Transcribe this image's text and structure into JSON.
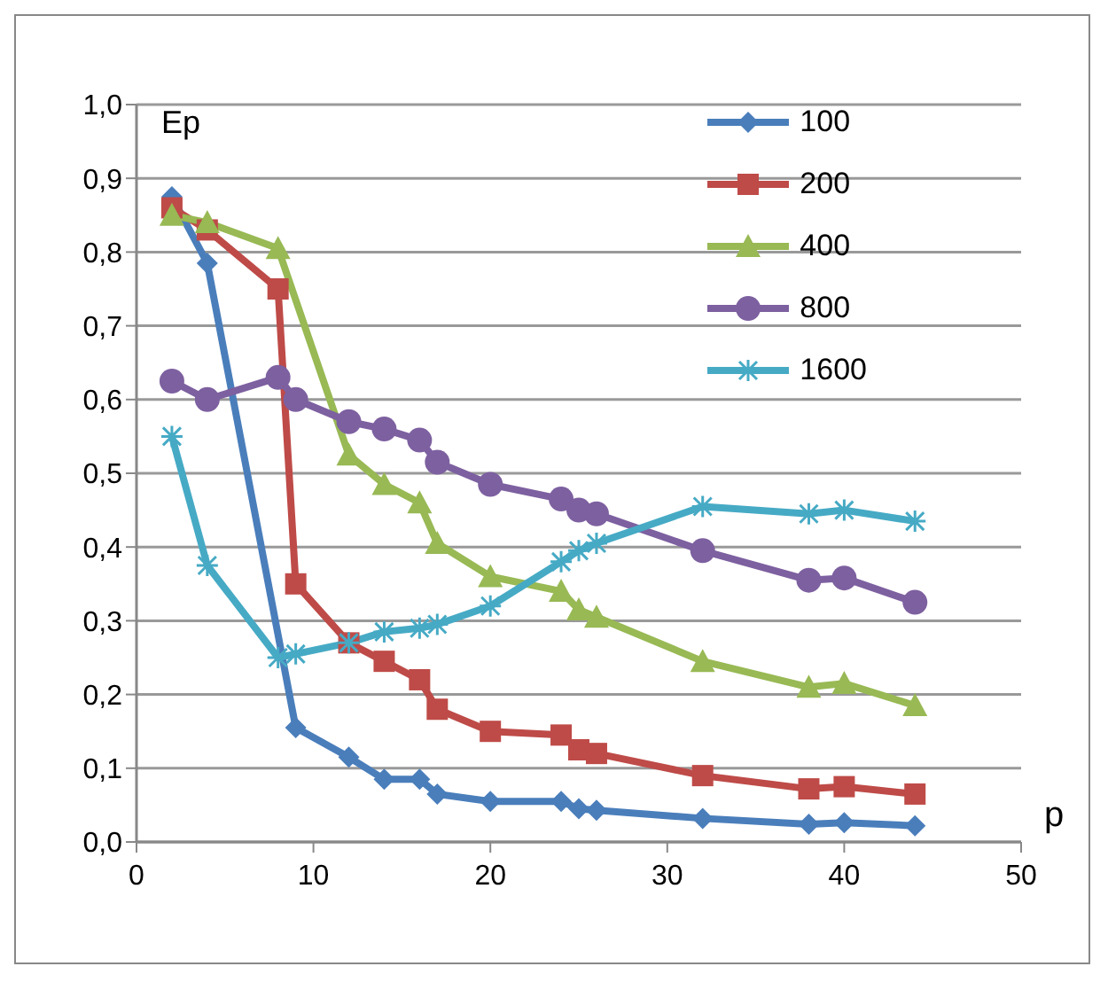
{
  "chart_data": {
    "type": "line",
    "xlabel": "p",
    "ylabel": "Ep",
    "xlim": [
      0,
      50
    ],
    "xticks": [
      0,
      10,
      20,
      30,
      40,
      50
    ],
    "ylim": [
      0,
      1
    ],
    "yticks": [
      {
        "value": 0,
        "label": "0,0"
      },
      {
        "value": 0.1,
        "label": "0,1"
      },
      {
        "value": 0.2,
        "label": "0,2"
      },
      {
        "value": 0.3,
        "label": "0,3"
      },
      {
        "value": 0.4,
        "label": "0,4"
      },
      {
        "value": 0.5,
        "label": "0,5"
      },
      {
        "value": 0.6,
        "label": "0,6"
      },
      {
        "value": 0.7,
        "label": "0,7"
      },
      {
        "value": 0.8,
        "label": "0,8"
      },
      {
        "value": 0.9,
        "label": "0,9"
      },
      {
        "value": 1,
        "label": "1,0"
      }
    ],
    "grid": "y",
    "legend": "top right",
    "series": [
      {
        "name": "100",
        "color": "#4a7ebb",
        "marker": "diamond",
        "x": [
          2,
          4,
          9,
          12,
          14,
          16,
          17,
          20,
          24,
          25,
          26,
          32,
          38,
          40,
          44
        ],
        "values": [
          0.875,
          0.785,
          0.155,
          0.115,
          0.085,
          0.085,
          0.065,
          0.055,
          0.055,
          0.045,
          0.043,
          0.032,
          0.024,
          0.026,
          0.022
        ]
      },
      {
        "name": "200",
        "color": "#be4b48",
        "marker": "square",
        "x": [
          2,
          4,
          8,
          9,
          12,
          14,
          16,
          17,
          20,
          24,
          25,
          26,
          32,
          38,
          40,
          44
        ],
        "values": [
          0.86,
          0.83,
          0.75,
          0.35,
          0.27,
          0.245,
          0.22,
          0.18,
          0.15,
          0.145,
          0.125,
          0.12,
          0.09,
          0.072,
          0.075,
          0.065
        ]
      },
      {
        "name": "400",
        "color": "#98b954",
        "marker": "triangle",
        "x": [
          2,
          4,
          8,
          12,
          14,
          16,
          17,
          20,
          24,
          25,
          26,
          32,
          38,
          40,
          44
        ],
        "values": [
          0.85,
          0.84,
          0.805,
          0.525,
          0.485,
          0.46,
          0.405,
          0.36,
          0.34,
          0.315,
          0.305,
          0.245,
          0.21,
          0.215,
          0.185
        ]
      },
      {
        "name": "800",
        "color": "#7d60a0",
        "marker": "circle",
        "x": [
          2,
          4,
          8,
          9,
          12,
          14,
          16,
          17,
          20,
          24,
          25,
          26,
          32,
          38,
          40,
          44
        ],
        "values": [
          0.625,
          0.6,
          0.63,
          0.6,
          0.57,
          0.56,
          0.545,
          0.515,
          0.485,
          0.465,
          0.45,
          0.445,
          0.395,
          0.355,
          0.358,
          0.325
        ]
      },
      {
        "name": "1600",
        "color": "#46aac5",
        "marker": "cross",
        "x": [
          2,
          4,
          8,
          9,
          12,
          14,
          16,
          17,
          20,
          24,
          25,
          26,
          32,
          38,
          40,
          44
        ],
        "values": [
          0.55,
          0.375,
          0.25,
          0.255,
          0.27,
          0.285,
          0.29,
          0.295,
          0.32,
          0.38,
          0.395,
          0.405,
          0.455,
          0.445,
          0.45,
          0.435
        ]
      }
    ]
  }
}
